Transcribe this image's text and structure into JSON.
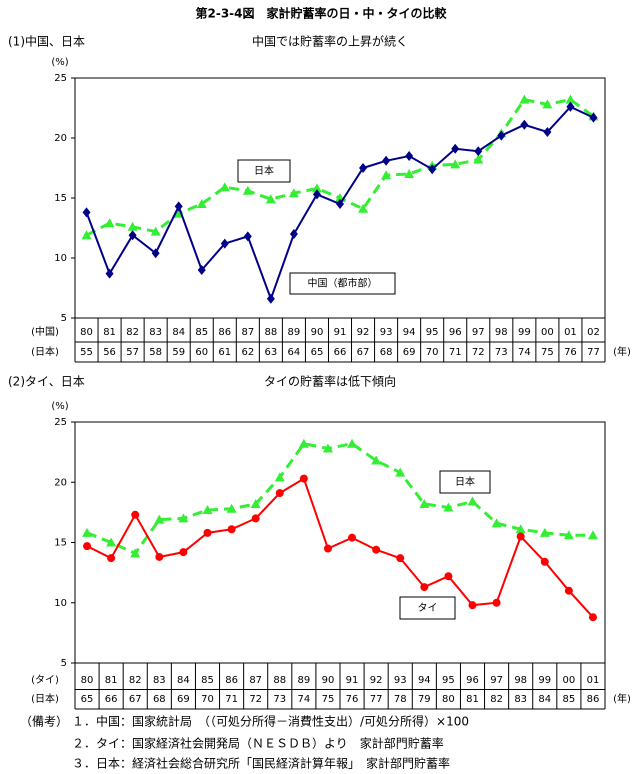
{
  "title": "第2-3-4図　家計貯蓄率の日・中・タイの比較",
  "chart_data": [
    {
      "type": "line",
      "subtitle": "(1)中国、日本",
      "title": "中国では貯蓄率の上昇が続く",
      "y_label": "(%)",
      "x_label": "(年)",
      "row_labels": [
        "(中国)",
        "(日本)"
      ],
      "categories": [
        "80",
        "81",
        "82",
        "83",
        "84",
        "85",
        "86",
        "87",
        "88",
        "89",
        "90",
        "91",
        "92",
        "93",
        "94",
        "95",
        "96",
        "97",
        "98",
        "99",
        "00",
        "01",
        "02"
      ],
      "categories_2": [
        "55",
        "56",
        "57",
        "58",
        "59",
        "60",
        "61",
        "62",
        "63",
        "64",
        "65",
        "66",
        "67",
        "68",
        "69",
        "70",
        "71",
        "72",
        "73",
        "74",
        "75",
        "76",
        "77"
      ],
      "ylim": [
        5,
        25
      ],
      "yticks": [
        5,
        10,
        15,
        20,
        25
      ],
      "series": [
        {
          "name": "日本",
          "color": "#33ee33",
          "marker": "triangle",
          "dashed": true,
          "values": [
            11.9,
            12.9,
            12.6,
            12.2,
            13.7,
            14.5,
            15.9,
            15.6,
            14.9,
            15.4,
            15.8,
            15.0,
            14.1,
            16.9,
            17.0,
            17.7,
            17.8,
            18.2,
            20.4,
            23.2,
            22.8,
            23.2,
            21.8
          ]
        },
        {
          "name": "中国（都市部）",
          "color": "#000088",
          "marker": "diamond",
          "dashed": false,
          "values": [
            13.8,
            8.7,
            11.9,
            10.4,
            14.3,
            9.0,
            11.2,
            11.8,
            6.6,
            12.0,
            15.3,
            14.5,
            17.5,
            18.1,
            18.5,
            17.4,
            19.1,
            18.9,
            20.2,
            21.1,
            20.5,
            22.6,
            21.7
          ]
        }
      ]
    },
    {
      "type": "line",
      "subtitle": "(2)タイ、日本",
      "title": "タイの貯蓄率は低下傾向",
      "y_label": "(%)",
      "x_label": "(年)",
      "row_labels": [
        "(タイ)",
        "(日本)"
      ],
      "categories": [
        "80",
        "81",
        "82",
        "83",
        "84",
        "85",
        "86",
        "87",
        "88",
        "89",
        "90",
        "91",
        "92",
        "93",
        "94",
        "95",
        "96",
        "97",
        "98",
        "99",
        "00",
        "01"
      ],
      "categories_2": [
        "65",
        "66",
        "67",
        "68",
        "69",
        "70",
        "71",
        "72",
        "73",
        "74",
        "75",
        "76",
        "77",
        "78",
        "79",
        "80",
        "81",
        "82",
        "83",
        "84",
        "85",
        "86"
      ],
      "ylim": [
        5,
        25
      ],
      "yticks": [
        5,
        10,
        15,
        20,
        25
      ],
      "series": [
        {
          "name": "日本",
          "color": "#33ee33",
          "marker": "triangle",
          "dashed": true,
          "values": [
            15.8,
            15.0,
            14.1,
            16.9,
            17.0,
            17.7,
            17.8,
            18.2,
            20.4,
            23.2,
            22.8,
            23.2,
            21.8,
            20.8,
            18.2,
            17.9,
            18.4,
            16.6,
            16.1,
            15.8,
            15.6,
            15.6
          ]
        },
        {
          "name": "タイ",
          "color": "#ff0000",
          "marker": "circle",
          "dashed": false,
          "values": [
            14.7,
            13.7,
            17.3,
            13.8,
            14.2,
            15.8,
            16.1,
            17.0,
            19.1,
            20.3,
            14.5,
            15.4,
            14.4,
            13.7,
            11.3,
            12.2,
            9.8,
            10.0,
            15.5,
            13.4,
            11.0,
            8.8
          ]
        }
      ]
    }
  ],
  "notes_label": "（備考）",
  "notes": [
    "１．中国：国家統計局　（（可処分所得－消費性支出）/可処分所得）×100",
    "２．タイ：国家経済社会開発局（ＮＥＳＤＢ）より　家計部門貯蓄率",
    "３．日本：経済社会総合研究所「国民経済計算年報」　家計部門貯蓄率"
  ]
}
